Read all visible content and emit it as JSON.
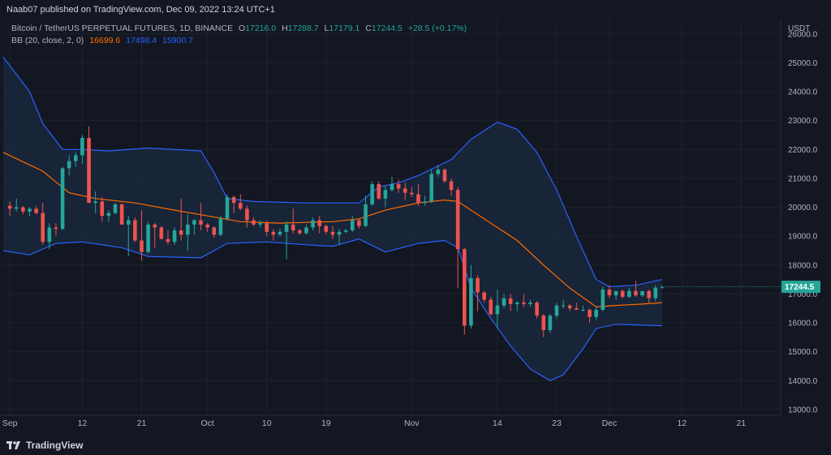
{
  "header": {
    "published_line": "Naab07 published on TradingView.com, Dec 09, 2022 13:24 UTC+1"
  },
  "legend": {
    "symbol": "Bitcoin / TetherUS PERPETUAL FUTURES, 1D, BINANCE",
    "ohlc": [
      {
        "label": "O",
        "value": "17216.0"
      },
      {
        "label": "H",
        "value": "17288.7"
      },
      {
        "label": "L",
        "value": "17179.1"
      },
      {
        "label": "C",
        "value": "17244.5"
      }
    ],
    "change": "+28.5 (+0.17%)",
    "bb_label": "BB (20, close, 2, 0)",
    "bb_values": [
      "16699.6",
      "17498.4",
      "15900.7"
    ]
  },
  "footer": {
    "brand": "TradingView",
    "logo_icon": "tradingview-logo-icon"
  },
  "colors": {
    "background": "#131722",
    "up": "#26a69a",
    "down": "#ef5350",
    "bb_basis": "#ff6d00",
    "bb_band": "#2962ff",
    "bb_fill": "#1b2a3f",
    "text": "#d1d4dc",
    "grid": "#1e222d"
  },
  "chart_data": {
    "type": "candlestick",
    "price_axis_unit": "USDT",
    "ylim": [
      12800,
      26500
    ],
    "y_ticks": [
      "13000.0",
      "14000.0",
      "15000.0",
      "16000.0",
      "17000.0",
      "18000.0",
      "19000.0",
      "20000.0",
      "21000.0",
      "22000.0",
      "23000.0",
      "24000.0",
      "25000.0",
      "26000.0"
    ],
    "x_ticks": [
      {
        "label": "Sep",
        "date": "2022-09-01"
      },
      {
        "label": "12",
        "date": "2022-09-12"
      },
      {
        "label": "21",
        "date": "2022-09-21"
      },
      {
        "label": "Oct",
        "date": "2022-10-01"
      },
      {
        "label": "10",
        "date": "2022-10-10"
      },
      {
        "label": "19",
        "date": "2022-10-19"
      },
      {
        "label": "Nov",
        "date": "2022-11-01"
      },
      {
        "label": "14",
        "date": "2022-11-14"
      },
      {
        "label": "23",
        "date": "2022-11-23"
      },
      {
        "label": "Dec",
        "date": "2022-12-01"
      },
      {
        "label": "12",
        "date": "2022-12-12"
      },
      {
        "label": "21",
        "date": "2022-12-21"
      }
    ],
    "x_range": [
      "2022-08-31",
      "2022-12-27"
    ],
    "last_price_label": "17244.5",
    "candles": [
      {
        "d": "2022-09-01",
        "o": 20050,
        "h": 20200,
        "l": 19700,
        "c": 19950
      },
      {
        "d": "2022-09-02",
        "o": 19950,
        "h": 20300,
        "l": 19850,
        "c": 20000
      },
      {
        "d": "2022-09-03",
        "o": 20000,
        "h": 20050,
        "l": 19750,
        "c": 19850
      },
      {
        "d": "2022-09-04",
        "o": 19850,
        "h": 20000,
        "l": 19700,
        "c": 19950
      },
      {
        "d": "2022-09-05",
        "o": 19950,
        "h": 20050,
        "l": 19750,
        "c": 19800
      },
      {
        "d": "2022-09-06",
        "o": 19800,
        "h": 20150,
        "l": 18700,
        "c": 18800
      },
      {
        "d": "2022-09-07",
        "o": 18800,
        "h": 19450,
        "l": 18550,
        "c": 19300
      },
      {
        "d": "2022-09-08",
        "o": 19300,
        "h": 19450,
        "l": 19000,
        "c": 19250
      },
      {
        "d": "2022-09-09",
        "o": 19250,
        "h": 21400,
        "l": 19200,
        "c": 21350
      },
      {
        "d": "2022-09-10",
        "o": 21350,
        "h": 21800,
        "l": 21100,
        "c": 21600
      },
      {
        "d": "2022-09-11",
        "o": 21600,
        "h": 21900,
        "l": 21400,
        "c": 21800
      },
      {
        "d": "2022-09-12",
        "o": 21800,
        "h": 22500,
        "l": 21500,
        "c": 22400
      },
      {
        "d": "2022-09-13",
        "o": 22400,
        "h": 22800,
        "l": 20200,
        "c": 20150
      },
      {
        "d": "2022-09-14",
        "o": 20150,
        "h": 20550,
        "l": 19800,
        "c": 20200
      },
      {
        "d": "2022-09-15",
        "o": 20200,
        "h": 20350,
        "l": 19500,
        "c": 19700
      },
      {
        "d": "2022-09-16",
        "o": 19700,
        "h": 19900,
        "l": 19500,
        "c": 19800
      },
      {
        "d": "2022-09-17",
        "o": 19800,
        "h": 20150,
        "l": 19750,
        "c": 20100
      },
      {
        "d": "2022-09-18",
        "o": 20100,
        "h": 20150,
        "l": 19500,
        "c": 19400
      },
      {
        "d": "2022-09-19",
        "o": 19400,
        "h": 19700,
        "l": 18300,
        "c": 19550
      },
      {
        "d": "2022-09-20",
        "o": 19550,
        "h": 19650,
        "l": 18800,
        "c": 18850
      },
      {
        "d": "2022-09-21",
        "o": 18850,
        "h": 19900,
        "l": 18150,
        "c": 18450
      },
      {
        "d": "2022-09-22",
        "o": 18450,
        "h": 19500,
        "l": 18400,
        "c": 19400
      },
      {
        "d": "2022-09-23",
        "o": 19400,
        "h": 19450,
        "l": 18600,
        "c": 19300
      },
      {
        "d": "2022-09-24",
        "o": 19300,
        "h": 19350,
        "l": 18950,
        "c": 18900
      },
      {
        "d": "2022-09-25",
        "o": 18900,
        "h": 19200,
        "l": 18700,
        "c": 18800
      },
      {
        "d": "2022-09-26",
        "o": 18800,
        "h": 19300,
        "l": 18700,
        "c": 19200
      },
      {
        "d": "2022-09-27",
        "o": 19200,
        "h": 20300,
        "l": 18850,
        "c": 19050
      },
      {
        "d": "2022-09-28",
        "o": 19050,
        "h": 19750,
        "l": 18500,
        "c": 19400
      },
      {
        "d": "2022-09-29",
        "o": 19400,
        "h": 19600,
        "l": 19050,
        "c": 19550
      },
      {
        "d": "2022-09-30",
        "o": 19550,
        "h": 20150,
        "l": 19200,
        "c": 19400
      },
      {
        "d": "2022-10-01",
        "o": 19400,
        "h": 19450,
        "l": 19150,
        "c": 19300
      },
      {
        "d": "2022-10-02",
        "o": 19300,
        "h": 19350,
        "l": 18950,
        "c": 19050
      },
      {
        "d": "2022-10-03",
        "o": 19050,
        "h": 19700,
        "l": 19000,
        "c": 19600
      },
      {
        "d": "2022-10-04",
        "o": 19600,
        "h": 20450,
        "l": 19550,
        "c": 20350
      },
      {
        "d": "2022-10-05",
        "o": 20350,
        "h": 20400,
        "l": 19800,
        "c": 20150
      },
      {
        "d": "2022-10-06",
        "o": 20150,
        "h": 20450,
        "l": 19900,
        "c": 19950
      },
      {
        "d": "2022-10-07",
        "o": 19950,
        "h": 20050,
        "l": 19300,
        "c": 19550
      },
      {
        "d": "2022-10-08",
        "o": 19550,
        "h": 19650,
        "l": 19350,
        "c": 19400
      },
      {
        "d": "2022-10-09",
        "o": 19400,
        "h": 19550,
        "l": 19300,
        "c": 19450
      },
      {
        "d": "2022-10-10",
        "o": 19450,
        "h": 19550,
        "l": 19000,
        "c": 19150
      },
      {
        "d": "2022-10-11",
        "o": 19150,
        "h": 19250,
        "l": 18850,
        "c": 19050
      },
      {
        "d": "2022-10-12",
        "o": 19050,
        "h": 19250,
        "l": 19000,
        "c": 19150
      },
      {
        "d": "2022-10-13",
        "o": 19150,
        "h": 19500,
        "l": 18200,
        "c": 19400
      },
      {
        "d": "2022-10-14",
        "o": 19400,
        "h": 19950,
        "l": 19100,
        "c": 19200
      },
      {
        "d": "2022-10-15",
        "o": 19200,
        "h": 19250,
        "l": 19050,
        "c": 19100
      },
      {
        "d": "2022-10-16",
        "o": 19100,
        "h": 19400,
        "l": 19050,
        "c": 19300
      },
      {
        "d": "2022-10-17",
        "o": 19300,
        "h": 19650,
        "l": 19200,
        "c": 19550
      },
      {
        "d": "2022-10-18",
        "o": 19550,
        "h": 19700,
        "l": 19100,
        "c": 19350
      },
      {
        "d": "2022-10-19",
        "o": 19350,
        "h": 19400,
        "l": 19050,
        "c": 19150
      },
      {
        "d": "2022-10-20",
        "o": 19150,
        "h": 19350,
        "l": 18900,
        "c": 19050
      },
      {
        "d": "2022-10-21",
        "o": 19050,
        "h": 19250,
        "l": 18700,
        "c": 19150
      },
      {
        "d": "2022-10-22",
        "o": 19150,
        "h": 19250,
        "l": 19100,
        "c": 19200
      },
      {
        "d": "2022-10-23",
        "o": 19200,
        "h": 19700,
        "l": 19150,
        "c": 19550
      },
      {
        "d": "2022-10-24",
        "o": 19550,
        "h": 19600,
        "l": 19250,
        "c": 19350
      },
      {
        "d": "2022-10-25",
        "o": 19350,
        "h": 20400,
        "l": 19300,
        "c": 20100
      },
      {
        "d": "2022-10-26",
        "o": 20100,
        "h": 20900,
        "l": 20050,
        "c": 20800
      },
      {
        "d": "2022-10-27",
        "o": 20800,
        "h": 20900,
        "l": 20250,
        "c": 20300
      },
      {
        "d": "2022-10-28",
        "o": 20300,
        "h": 20750,
        "l": 20000,
        "c": 20600
      },
      {
        "d": "2022-10-29",
        "o": 20600,
        "h": 21050,
        "l": 20550,
        "c": 20800
      },
      {
        "d": "2022-10-30",
        "o": 20800,
        "h": 20950,
        "l": 20500,
        "c": 20650
      },
      {
        "d": "2022-10-31",
        "o": 20650,
        "h": 20850,
        "l": 20250,
        "c": 20500
      },
      {
        "d": "2022-11-01",
        "o": 20500,
        "h": 20700,
        "l": 20350,
        "c": 20450
      },
      {
        "d": "2022-11-02",
        "o": 20450,
        "h": 20800,
        "l": 20050,
        "c": 20150
      },
      {
        "d": "2022-11-03",
        "o": 20150,
        "h": 20400,
        "l": 20050,
        "c": 20200
      },
      {
        "d": "2022-11-04",
        "o": 20200,
        "h": 21300,
        "l": 20150,
        "c": 21150
      },
      {
        "d": "2022-11-05",
        "o": 21150,
        "h": 21450,
        "l": 21050,
        "c": 21300
      },
      {
        "d": "2022-11-06",
        "o": 21300,
        "h": 21350,
        "l": 20850,
        "c": 20900
      },
      {
        "d": "2022-11-07",
        "o": 20900,
        "h": 21000,
        "l": 20400,
        "c": 20600
      },
      {
        "d": "2022-11-08",
        "o": 20600,
        "h": 20700,
        "l": 17200,
        "c": 18550
      },
      {
        "d": "2022-11-09",
        "o": 18550,
        "h": 18600,
        "l": 15600,
        "c": 15900
      },
      {
        "d": "2022-11-10",
        "o": 15900,
        "h": 18000,
        "l": 15800,
        "c": 17550
      },
      {
        "d": "2022-11-11",
        "o": 17550,
        "h": 17650,
        "l": 16400,
        "c": 17050
      },
      {
        "d": "2022-11-12",
        "o": 17050,
        "h": 17100,
        "l": 16700,
        "c": 16800
      },
      {
        "d": "2022-11-13",
        "o": 16800,
        "h": 16900,
        "l": 16250,
        "c": 16300
      },
      {
        "d": "2022-11-14",
        "o": 16300,
        "h": 17150,
        "l": 15800,
        "c": 16600
      },
      {
        "d": "2022-11-15",
        "o": 16600,
        "h": 17000,
        "l": 16500,
        "c": 16850
      },
      {
        "d": "2022-11-16",
        "o": 16850,
        "h": 17000,
        "l": 16400,
        "c": 16650
      },
      {
        "d": "2022-11-17",
        "o": 16650,
        "h": 16750,
        "l": 16400,
        "c": 16700
      },
      {
        "d": "2022-11-18",
        "o": 16700,
        "h": 17000,
        "l": 16550,
        "c": 16650
      },
      {
        "d": "2022-11-19",
        "o": 16650,
        "h": 16800,
        "l": 16550,
        "c": 16700
      },
      {
        "d": "2022-11-20",
        "o": 16700,
        "h": 16750,
        "l": 16150,
        "c": 16250
      },
      {
        "d": "2022-11-21",
        "o": 16250,
        "h": 16300,
        "l": 15500,
        "c": 15750
      },
      {
        "d": "2022-11-22",
        "o": 15750,
        "h": 16300,
        "l": 15650,
        "c": 16250
      },
      {
        "d": "2022-11-23",
        "o": 16250,
        "h": 16700,
        "l": 16150,
        "c": 16600
      },
      {
        "d": "2022-11-24",
        "o": 16600,
        "h": 16800,
        "l": 16500,
        "c": 16600
      },
      {
        "d": "2022-11-25",
        "o": 16600,
        "h": 16650,
        "l": 16400,
        "c": 16500
      },
      {
        "d": "2022-11-26",
        "o": 16500,
        "h": 16700,
        "l": 16450,
        "c": 16450
      },
      {
        "d": "2022-11-27",
        "o": 16450,
        "h": 16600,
        "l": 16400,
        "c": 16450
      },
      {
        "d": "2022-11-28",
        "o": 16450,
        "h": 16500,
        "l": 16000,
        "c": 16200
      },
      {
        "d": "2022-11-29",
        "o": 16200,
        "h": 16550,
        "l": 16100,
        "c": 16450
      },
      {
        "d": "2022-11-30",
        "o": 16450,
        "h": 17250,
        "l": 16400,
        "c": 17150
      },
      {
        "d": "2022-12-01",
        "o": 17150,
        "h": 17300,
        "l": 16850,
        "c": 16950
      },
      {
        "d": "2022-12-02",
        "o": 16950,
        "h": 17100,
        "l": 16800,
        "c": 17100
      },
      {
        "d": "2022-12-03",
        "o": 17100,
        "h": 17150,
        "l": 16850,
        "c": 16900
      },
      {
        "d": "2022-12-04",
        "o": 16900,
        "h": 17200,
        "l": 16850,
        "c": 17100
      },
      {
        "d": "2022-12-05",
        "o": 17100,
        "h": 17450,
        "l": 16900,
        "c": 16950
      },
      {
        "d": "2022-12-06",
        "o": 16950,
        "h": 17100,
        "l": 16900,
        "c": 17100
      },
      {
        "d": "2022-12-07",
        "o": 17100,
        "h": 17150,
        "l": 16700,
        "c": 16850
      },
      {
        "d": "2022-12-08",
        "o": 16850,
        "h": 17300,
        "l": 16750,
        "c": 17216
      },
      {
        "d": "2022-12-09",
        "o": 17216,
        "h": 17288.7,
        "l": 17179.1,
        "c": 17244.5
      }
    ],
    "bollinger": {
      "period": 20,
      "source": "close",
      "stddev": 2,
      "basis": [
        [
          "2022-08-31",
          21900
        ],
        [
          "2022-09-06",
          21250
        ],
        [
          "2022-09-10",
          20500
        ],
        [
          "2022-09-14",
          20300
        ],
        [
          "2022-09-20",
          20150
        ],
        [
          "2022-09-26",
          19900
        ],
        [
          "2022-10-01",
          19700
        ],
        [
          "2022-10-06",
          19500
        ],
        [
          "2022-10-12",
          19450
        ],
        [
          "2022-10-20",
          19500
        ],
        [
          "2022-10-24",
          19600
        ],
        [
          "2022-10-28",
          19900
        ],
        [
          "2022-11-02",
          20150
        ],
        [
          "2022-11-06",
          20250
        ],
        [
          "2022-11-08",
          20200
        ],
        [
          "2022-11-10",
          19900
        ],
        [
          "2022-11-13",
          19450
        ],
        [
          "2022-11-17",
          18850
        ],
        [
          "2022-11-21",
          18000
        ],
        [
          "2022-11-25",
          17200
        ],
        [
          "2022-11-29",
          16550
        ],
        [
          "2022-12-02",
          16600
        ],
        [
          "2022-12-06",
          16650
        ],
        [
          "2022-12-09",
          16699.6
        ]
      ],
      "upper": [
        [
          "2022-08-31",
          25200
        ],
        [
          "2022-09-04",
          24000
        ],
        [
          "2022-09-06",
          22900
        ],
        [
          "2022-09-09",
          22000
        ],
        [
          "2022-09-12",
          22000
        ],
        [
          "2022-09-16",
          21950
        ],
        [
          "2022-09-22",
          22050
        ],
        [
          "2022-09-30",
          21950
        ],
        [
          "2022-10-02",
          21200
        ],
        [
          "2022-10-04",
          20300
        ],
        [
          "2022-10-08",
          20200
        ],
        [
          "2022-10-16",
          20150
        ],
        [
          "2022-10-24",
          20150
        ],
        [
          "2022-10-27",
          20700
        ],
        [
          "2022-10-30",
          20850
        ],
        [
          "2022-11-02",
          21100
        ],
        [
          "2022-11-07",
          21650
        ],
        [
          "2022-11-10",
          22350
        ],
        [
          "2022-11-14",
          22950
        ],
        [
          "2022-11-17",
          22700
        ],
        [
          "2022-11-20",
          21900
        ],
        [
          "2022-11-23",
          20600
        ],
        [
          "2022-11-26",
          19000
        ],
        [
          "2022-11-29",
          17500
        ],
        [
          "2022-12-01",
          17250
        ],
        [
          "2022-12-05",
          17300
        ],
        [
          "2022-12-09",
          17498.4
        ]
      ],
      "lower": [
        [
          "2022-08-31",
          18500
        ],
        [
          "2022-09-04",
          18350
        ],
        [
          "2022-09-08",
          18750
        ],
        [
          "2022-09-12",
          18800
        ],
        [
          "2022-09-18",
          18600
        ],
        [
          "2022-09-22",
          18300
        ],
        [
          "2022-09-30",
          18250
        ],
        [
          "2022-10-04",
          18750
        ],
        [
          "2022-10-10",
          18800
        ],
        [
          "2022-10-16",
          18700
        ],
        [
          "2022-10-20",
          18650
        ],
        [
          "2022-10-24",
          18900
        ],
        [
          "2022-10-28",
          18450
        ],
        [
          "2022-11-02",
          18750
        ],
        [
          "2022-11-06",
          18850
        ],
        [
          "2022-11-08",
          18600
        ],
        [
          "2022-11-10",
          17200
        ],
        [
          "2022-11-13",
          16150
        ],
        [
          "2022-11-16",
          15200
        ],
        [
          "2022-11-19",
          14400
        ],
        [
          "2022-11-22",
          14000
        ],
        [
          "2022-11-24",
          14200
        ],
        [
          "2022-11-27",
          15100
        ],
        [
          "2022-11-29",
          15800
        ],
        [
          "2022-12-02",
          15950
        ],
        [
          "2022-12-09",
          15900.7
        ]
      ]
    }
  }
}
